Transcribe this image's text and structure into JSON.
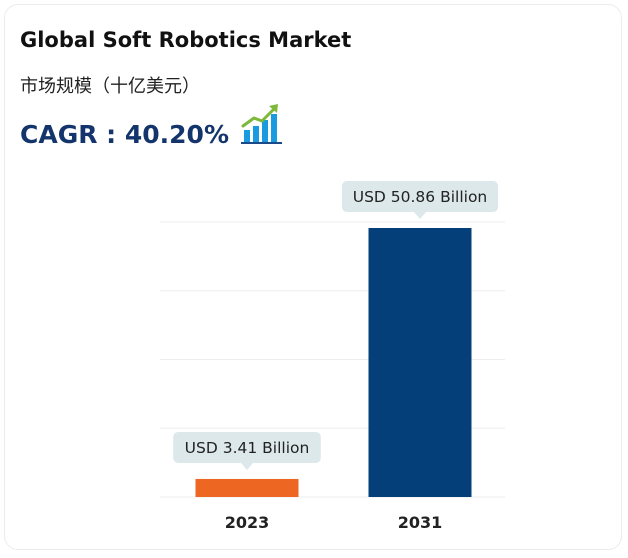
{
  "header": {
    "title": "Global Soft Robotics Market",
    "subtitle": "市场规模（十亿美元）",
    "cagr": "CAGR : 40.20%"
  },
  "icons": {
    "growth": "bar-chart-growth-icon"
  },
  "colors": {
    "bar_2023": "#ee6722",
    "bar_2031": "#053f7a",
    "label_bg": "#dde8eb",
    "accent": "#14356b"
  },
  "chart_data": {
    "type": "bar",
    "categories": [
      "2023",
      "2031"
    ],
    "values": [
      3.41,
      50.86
    ],
    "data_labels": [
      "USD 3.41 Billion",
      "USD 50.86 Billion"
    ],
    "unit": "USD Billion",
    "ylim": [
      0,
      65
    ],
    "grid": true,
    "legend": "none"
  }
}
